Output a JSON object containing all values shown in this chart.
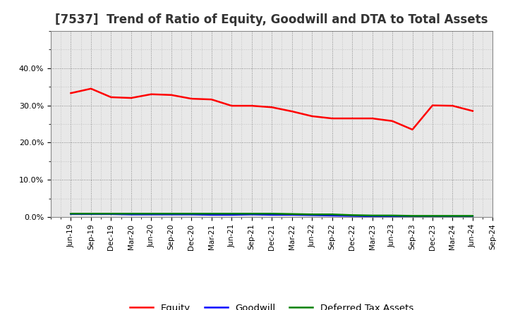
{
  "title": "[7537]  Trend of Ratio of Equity, Goodwill and DTA to Total Assets",
  "x_labels": [
    "Jun-19",
    "Sep-19",
    "Dec-19",
    "Mar-20",
    "Jun-20",
    "Sep-20",
    "Dec-20",
    "Mar-21",
    "Jun-21",
    "Sep-21",
    "Dec-21",
    "Mar-22",
    "Jun-22",
    "Sep-22",
    "Dec-22",
    "Mar-23",
    "Jun-23",
    "Sep-23",
    "Dec-23",
    "Mar-24",
    "Jun-24",
    "Sep-24"
  ],
  "equity": [
    0.333,
    0.345,
    0.322,
    0.32,
    0.33,
    0.328,
    0.318,
    0.316,
    0.299,
    0.299,
    0.295,
    0.284,
    0.271,
    0.265,
    0.265,
    0.265,
    0.258,
    0.235,
    0.3,
    0.299,
    0.285,
    null
  ],
  "goodwill": [
    0.008,
    0.008,
    0.008,
    0.007,
    0.007,
    0.007,
    0.007,
    0.006,
    0.006,
    0.007,
    0.006,
    0.006,
    0.005,
    0.004,
    0.003,
    0.002,
    0.001,
    0.001,
    0.001,
    0.001,
    0.001,
    null
  ],
  "dta": [
    0.009,
    0.009,
    0.009,
    0.009,
    0.009,
    0.009,
    0.009,
    0.009,
    0.009,
    0.009,
    0.009,
    0.008,
    0.007,
    0.007,
    0.005,
    0.004,
    0.004,
    0.003,
    0.003,
    0.003,
    0.003,
    null
  ],
  "equity_color": "#FF0000",
  "goodwill_color": "#0000FF",
  "dta_color": "#008000",
  "ylim": [
    0.0,
    0.5
  ],
  "yticks": [
    0.0,
    0.1,
    0.2,
    0.3,
    0.4
  ],
  "background_color": "#FFFFFF",
  "plot_bg_color": "#E8E8E8",
  "grid_color": "#AAAAAA",
  "title_fontsize": 12,
  "legend_labels": [
    "Equity",
    "Goodwill",
    "Deferred Tax Assets"
  ]
}
